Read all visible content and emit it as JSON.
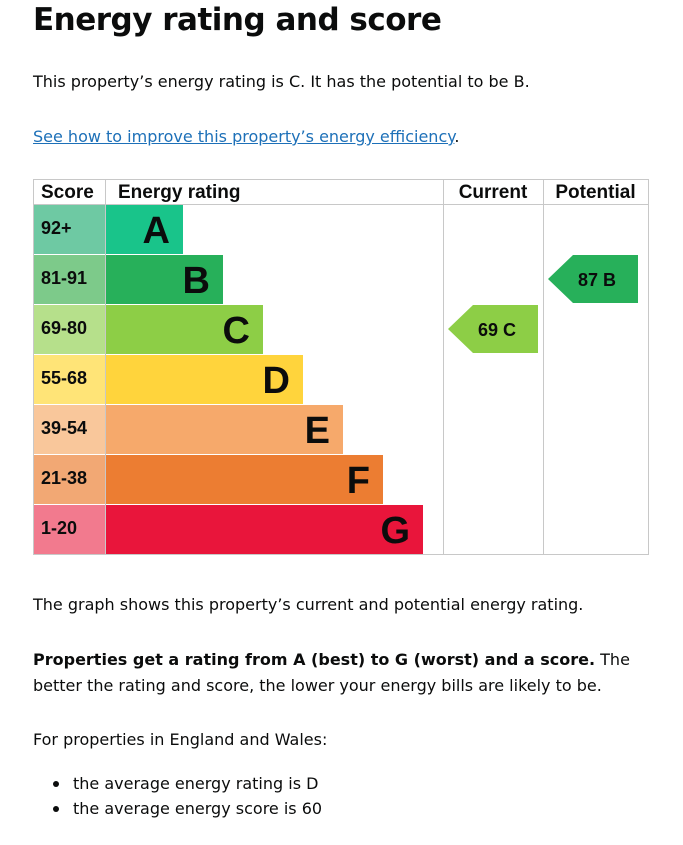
{
  "page": {
    "title": "Energy rating and score",
    "rating_text": "This property’s energy rating is C. It has the potential to be B.",
    "improve_link": "See how to improve this property’s energy efficiency",
    "improve_link_suffix": ".",
    "graph_text": "The graph shows this property’s current and potential energy rating.",
    "ratings_bold": "Properties get a rating from A (best) to G (worst) and a score.",
    "ratings_rest": " The better the rating and score, the lower your energy bills are likely to be.",
    "region_text": "For properties in England and Wales:",
    "bullets": [
      "the average energy rating is D",
      "the average energy score is 60"
    ]
  },
  "chart_data": {
    "type": "bar",
    "headers": {
      "score": "Score",
      "rating": "Energy rating",
      "current": "Current",
      "potential": "Potential"
    },
    "bands": [
      {
        "letter": "A",
        "range": "92+",
        "color": "#19c48a",
        "score_bg": "#6ec9a3"
      },
      {
        "letter": "B",
        "range": "81-91",
        "color": "#27b05a",
        "score_bg": "#7dca8a"
      },
      {
        "letter": "C",
        "range": "69-80",
        "color": "#8dce46",
        "score_bg": "#b6e08b"
      },
      {
        "letter": "D",
        "range": "55-68",
        "color": "#ffd43c",
        "score_bg": "#ffe477"
      },
      {
        "letter": "E",
        "range": "39-54",
        "color": "#f6a96b",
        "score_bg": "#f9c79b"
      },
      {
        "letter": "F",
        "range": "21-38",
        "color": "#ec7d32",
        "score_bg": "#f2a874"
      },
      {
        "letter": "G",
        "range": "1-20",
        "color": "#e9153b",
        "score_bg": "#f27a8e"
      }
    ],
    "current": {
      "score": 69,
      "band": "C",
      "label": "69  C",
      "color": "#8dce46"
    },
    "potential": {
      "score": 87,
      "band": "B",
      "label": "87  B",
      "color": "#27b05a"
    }
  }
}
